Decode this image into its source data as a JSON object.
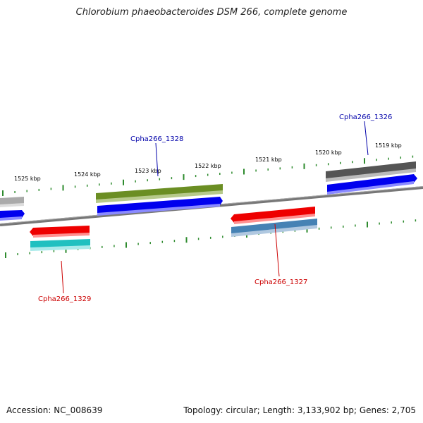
{
  "title": "Chlorobium phaeobacteroides DSM 266, complete genome",
  "footer": {
    "accession": "Accession: NC_008639",
    "topology": "Topology: circular; Length: 3,133,902 bp; Genes: 2,705"
  },
  "scale_labels": [
    "1525 kbp",
    "1524 kbp",
    "1523 kbp",
    "1522 kbp",
    "1521 kbp",
    "1520 kbp",
    "1519 kbp"
  ],
  "genes": [
    {
      "id": "Cpha266_1326",
      "strand": "+",
      "color": "#0000ee",
      "label_color": "#0000aa"
    },
    {
      "id": "Cpha266_1327",
      "strand": "-",
      "color": "#ee0000",
      "label_color": "#cc0000"
    },
    {
      "id": "Cpha266_1328",
      "strand": "+",
      "color": "#0000ee",
      "label_color": "#0000aa"
    },
    {
      "id": "Cpha266_1329",
      "strand": "-",
      "color": "#ee0000",
      "label_color": "#cc0000"
    }
  ],
  "colors": {
    "backbone": "#7a7a7a",
    "ticks": "#2e8b2e",
    "cds_plus": "#0000ee",
    "cds_minus": "#ee0000",
    "cog_olive": "#6b8e23",
    "cog_gray": "#555555",
    "cog_lightgray": "#aaaaaa",
    "cog_steelblue": "#4682b4",
    "cog_cyan": "#20c0c0"
  }
}
